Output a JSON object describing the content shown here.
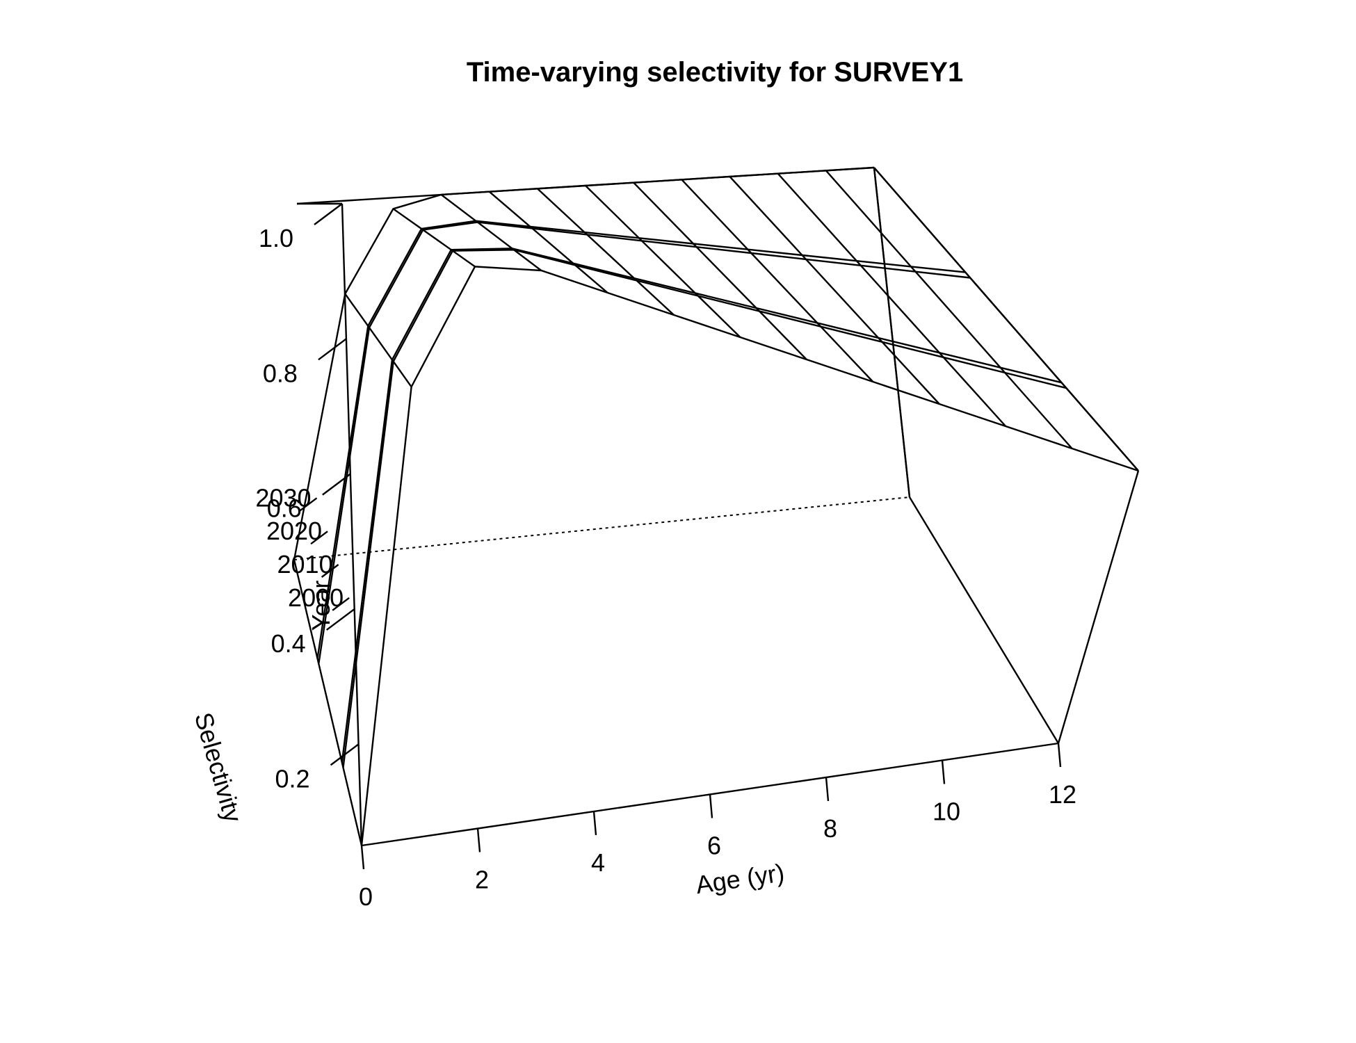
{
  "chart_data": {
    "type": "surface",
    "title": "Time-varying selectivity for SURVEY1",
    "xlabel": "Age (yr)",
    "ylabel": "Year",
    "zlabel": "Selectivity",
    "x_ticks": [
      "0",
      "2",
      "4",
      "6",
      "8",
      "10",
      "12"
    ],
    "y_ticks": [
      "2000",
      "2010",
      "2020",
      "2030"
    ],
    "z_ticks": [
      "0.2",
      "0.4",
      "0.6",
      "0.8",
      "1.0"
    ],
    "ages": [
      0,
      1,
      2,
      3,
      4,
      5,
      6,
      7,
      8,
      9,
      10,
      11,
      12
    ],
    "years": [
      1995,
      2010,
      2011,
      2030,
      2031,
      2050
    ],
    "selectivity_by_year": [
      [
        0.05,
        0.75,
        0.97,
        1.0,
        1.0,
        1.0,
        1.0,
        1.0,
        1.0,
        1.0,
        1.0,
        1.0,
        1.0
      ],
      [
        0.05,
        0.75,
        0.97,
        1.0,
        1.0,
        1.0,
        1.0,
        1.0,
        1.0,
        1.0,
        1.0,
        1.0,
        1.0
      ],
      [
        0.05,
        0.75,
        0.97,
        1.0,
        1.0,
        1.0,
        1.0,
        1.0,
        1.0,
        1.0,
        1.0,
        1.0,
        1.0
      ],
      [
        0.05,
        0.75,
        0.97,
        1.0,
        1.0,
        1.0,
        1.0,
        1.0,
        1.0,
        1.0,
        1.0,
        1.0,
        1.0
      ],
      [
        0.05,
        0.75,
        0.97,
        1.0,
        1.0,
        1.0,
        1.0,
        1.0,
        1.0,
        1.0,
        1.0,
        1.0,
        1.0
      ],
      [
        0.05,
        0.75,
        0.97,
        1.0,
        1.0,
        1.0,
        1.0,
        1.0,
        1.0,
        1.0,
        1.0,
        1.0,
        1.0
      ]
    ],
    "xlim": [
      0,
      12
    ],
    "ylim": [
      1995,
      2050
    ],
    "zlim": [
      0.05,
      1.0
    ],
    "grid": false
  }
}
